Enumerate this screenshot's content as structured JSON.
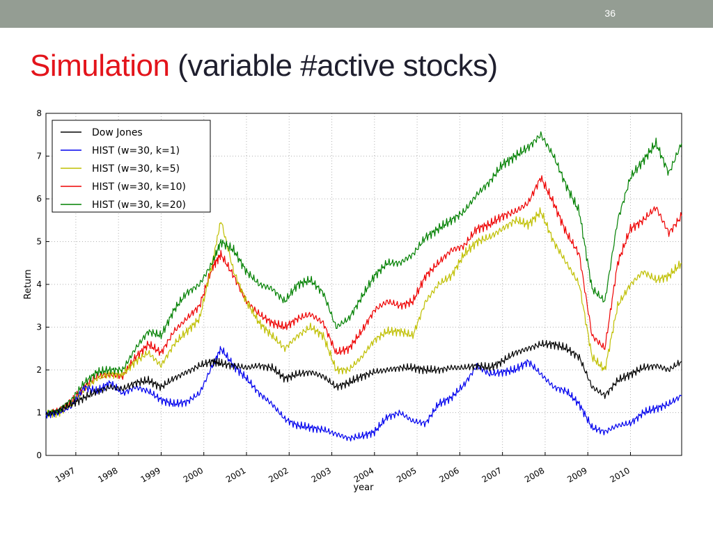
{
  "slide": {
    "number": "36",
    "title_accent": "Simulation",
    "title_rest": "(variable #active stocks)"
  },
  "colors": {
    "top_bar": "#949d93",
    "title_accent": "#e3141b",
    "title_text": "#1f1f2e",
    "dow": "#000000",
    "k1": "#0000ee",
    "k5": "#bfbf00",
    "k10": "#ee0000",
    "k20": "#008000"
  },
  "chart_data": {
    "type": "line",
    "xlabel": "year",
    "ylabel": "Return",
    "xlim": [
      1996.3,
      2011.2
    ],
    "ylim": [
      0,
      8
    ],
    "xticks": [
      "1997",
      "1998",
      "1999",
      "2000",
      "2001",
      "2002",
      "2003",
      "2004",
      "2005",
      "2006",
      "2007",
      "2008",
      "2009",
      "2010"
    ],
    "yticks": [
      "0",
      "1",
      "2",
      "3",
      "4",
      "5",
      "6",
      "7",
      "8"
    ],
    "grid": true,
    "legend_position": "top-left",
    "x": [
      1996.3,
      1996.6,
      1996.9,
      1997.2,
      1997.5,
      1997.8,
      1998.1,
      1998.4,
      1998.7,
      1999.0,
      1999.3,
      1999.6,
      1999.9,
      2000.2,
      2000.4,
      2000.7,
      2001.0,
      2001.3,
      2001.6,
      2001.9,
      2002.2,
      2002.5,
      2002.8,
      2003.1,
      2003.4,
      2003.7,
      2004.0,
      2004.3,
      2004.6,
      2004.9,
      2005.2,
      2005.5,
      2005.8,
      2006.1,
      2006.4,
      2006.7,
      2007.0,
      2007.3,
      2007.6,
      2007.9,
      2008.2,
      2008.5,
      2008.8,
      2009.1,
      2009.4,
      2009.7,
      2010.0,
      2010.3,
      2010.6,
      2010.9,
      2011.2
    ],
    "series": [
      {
        "name": "Dow Jones",
        "color": "#000000",
        "values": [
          0.95,
          1.05,
          1.2,
          1.35,
          1.5,
          1.6,
          1.55,
          1.7,
          1.75,
          1.6,
          1.8,
          1.95,
          2.1,
          2.2,
          2.15,
          2.1,
          2.05,
          2.1,
          2.05,
          1.8,
          1.9,
          1.95,
          1.85,
          1.6,
          1.7,
          1.85,
          1.95,
          2.0,
          2.05,
          2.05,
          2.0,
          2.0,
          2.05,
          2.05,
          2.1,
          2.05,
          2.2,
          2.4,
          2.5,
          2.6,
          2.6,
          2.5,
          2.3,
          1.6,
          1.4,
          1.75,
          1.9,
          2.05,
          2.1,
          2.0,
          2.2
        ]
      },
      {
        "name": "HIST (w=30, k=1)",
        "color": "#0000ee",
        "values": [
          0.95,
          1.0,
          1.15,
          1.6,
          1.5,
          1.7,
          1.45,
          1.6,
          1.5,
          1.3,
          1.2,
          1.25,
          1.45,
          2.1,
          2.5,
          2.1,
          1.8,
          1.45,
          1.2,
          0.85,
          0.7,
          0.65,
          0.6,
          0.5,
          0.4,
          0.45,
          0.55,
          0.9,
          1.0,
          0.8,
          0.75,
          1.2,
          1.35,
          1.65,
          2.1,
          1.9,
          1.95,
          2.0,
          2.2,
          1.9,
          1.6,
          1.5,
          1.2,
          0.65,
          0.55,
          0.7,
          0.75,
          1.0,
          1.1,
          1.2,
          1.4
        ]
      },
      {
        "name": "HIST (w=30, k=5)",
        "color": "#bfbf00",
        "values": [
          0.95,
          1.0,
          1.2,
          1.55,
          1.8,
          1.9,
          1.9,
          2.2,
          2.4,
          2.1,
          2.6,
          2.9,
          3.2,
          4.5,
          5.5,
          4.3,
          3.6,
          3.1,
          2.8,
          2.5,
          2.8,
          3.0,
          2.8,
          2.0,
          2.0,
          2.3,
          2.7,
          2.9,
          2.9,
          2.8,
          3.6,
          4.0,
          4.2,
          4.7,
          5.0,
          5.1,
          5.3,
          5.5,
          5.4,
          5.7,
          5.0,
          4.5,
          4.0,
          2.3,
          2.0,
          3.5,
          4.0,
          4.3,
          4.1,
          4.2,
          4.5
        ]
      },
      {
        "name": "HIST (w=30, k=10)",
        "color": "#ee0000",
        "values": [
          0.95,
          1.05,
          1.25,
          1.6,
          1.85,
          1.9,
          1.85,
          2.3,
          2.6,
          2.4,
          2.9,
          3.2,
          3.5,
          4.4,
          4.7,
          4.2,
          3.6,
          3.3,
          3.1,
          3.0,
          3.2,
          3.3,
          3.1,
          2.4,
          2.5,
          2.9,
          3.4,
          3.6,
          3.5,
          3.6,
          4.2,
          4.5,
          4.8,
          4.9,
          5.3,
          5.4,
          5.6,
          5.7,
          5.9,
          6.5,
          5.9,
          5.2,
          4.7,
          2.8,
          2.5,
          4.5,
          5.3,
          5.5,
          5.8,
          5.2,
          5.6
        ]
      },
      {
        "name": "HIST (w=30, k=20)",
        "color": "#008000",
        "values": [
          0.95,
          1.05,
          1.3,
          1.7,
          1.95,
          2.0,
          2.0,
          2.5,
          2.9,
          2.8,
          3.4,
          3.8,
          4.0,
          4.5,
          5.0,
          4.8,
          4.3,
          4.0,
          3.9,
          3.6,
          4.0,
          4.1,
          3.8,
          3.0,
          3.2,
          3.7,
          4.2,
          4.5,
          4.5,
          4.7,
          5.1,
          5.3,
          5.5,
          5.7,
          6.1,
          6.4,
          6.8,
          7.0,
          7.2,
          7.5,
          7.0,
          6.3,
          5.7,
          3.9,
          3.6,
          5.5,
          6.5,
          6.9,
          7.3,
          6.6,
          7.3
        ]
      }
    ]
  }
}
